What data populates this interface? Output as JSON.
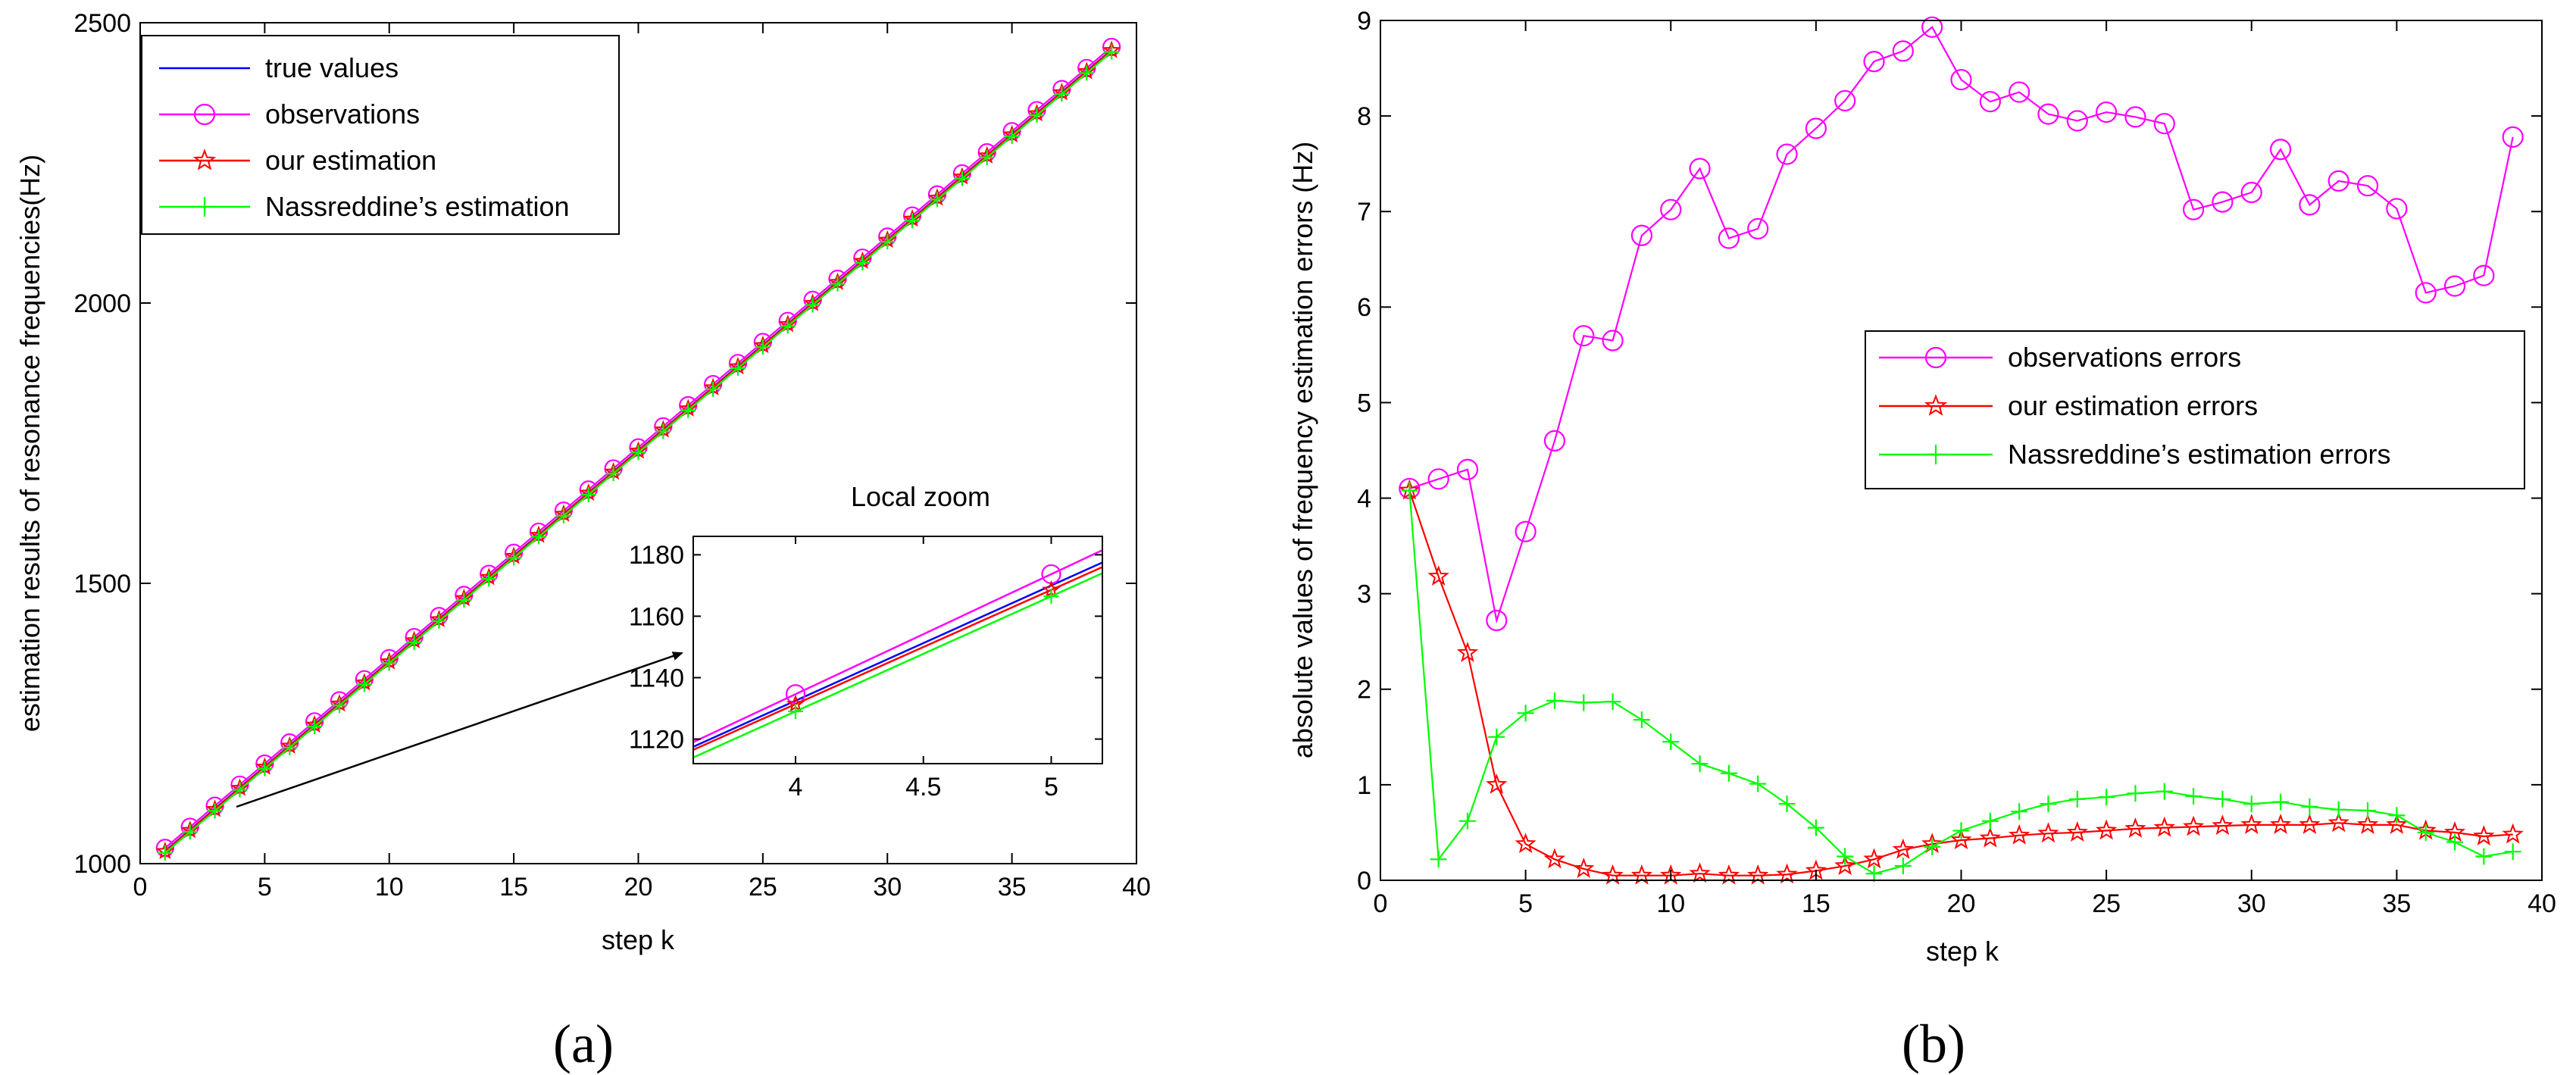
{
  "chart_data": [
    {
      "type": "line",
      "panel_label": "(a)",
      "xlabel": "step k",
      "ylabel": "estimation results of resonance frequencies(Hz)",
      "xlim": [
        0,
        40
      ],
      "ylim": [
        1000,
        2500
      ],
      "xticks": [
        "0",
        "5",
        "10",
        "15",
        "20",
        "25",
        "30",
        "35",
        "40"
      ],
      "yticks": [
        "1000",
        "1500",
        "2000",
        "2500"
      ],
      "legend_position": "top-left",
      "x": [
        1,
        2,
        3,
        4,
        5,
        6,
        7,
        8,
        9,
        10,
        11,
        12,
        13,
        14,
        15,
        16,
        17,
        18,
        19,
        20,
        21,
        22,
        23,
        24,
        25,
        26,
        27,
        28,
        29,
        30,
        31,
        32,
        33,
        34,
        35,
        36,
        37,
        38,
        39
      ],
      "line_start": 1023,
      "line_slope": 37.6,
      "series": [
        {
          "name": "true values",
          "color": "#0000ff",
          "marker": "none",
          "offset": 0
        },
        {
          "name": "observations",
          "color": "#ff00ff",
          "marker": "circle",
          "offset": 5
        },
        {
          "name": "our estimation",
          "color": "#ff0000",
          "marker": "star",
          "offset": -1
        },
        {
          "name": "Nassreddine’s estimation",
          "color": "#00ff00",
          "marker": "plus",
          "offset": -4
        }
      ],
      "inset": {
        "title": "Local zoom",
        "xlim": [
          3.6,
          5.2
        ],
        "ylim": [
          1112,
          1186
        ],
        "xticks": [
          "4",
          "4.5",
          "5"
        ],
        "yticks": [
          "1120",
          "1140",
          "1160",
          "1180"
        ],
        "series": [
          {
            "name": "true values",
            "color": "#0000ff",
            "marker": "none",
            "x": [
              3.6,
              5.2
            ],
            "y": [
              1117.5,
              1177.5
            ],
            "marker_x": []
          },
          {
            "name": "observations",
            "color": "#ff00ff",
            "marker": "circle",
            "x": [
              3.6,
              5.2
            ],
            "y": [
              1119.0,
              1181.5
            ],
            "marker_x": [
              4,
              5
            ]
          },
          {
            "name": "our estimation",
            "color": "#ff0000",
            "marker": "star",
            "x": [
              3.6,
              5.2
            ],
            "y": [
              1116.5,
              1176.0
            ],
            "marker_x": [
              4,
              5
            ]
          },
          {
            "name": "Nassreddine’s estimation",
            "color": "#00ff00",
            "marker": "plus",
            "x": [
              3.6,
              5.2
            ],
            "y": [
              1114.0,
              1174.0
            ],
            "marker_x": [
              4,
              5
            ]
          }
        ]
      }
    },
    {
      "type": "line",
      "panel_label": "(b)",
      "xlabel": "step k",
      "ylabel": "absolute values of frequency estimation errors (Hz)",
      "xlim": [
        0,
        40
      ],
      "ylim": [
        0,
        9
      ],
      "xticks": [
        "0",
        "5",
        "10",
        "15",
        "20",
        "25",
        "30",
        "35",
        "40"
      ],
      "yticks": [
        "0",
        "1",
        "2",
        "3",
        "4",
        "5",
        "6",
        "7",
        "8",
        "9"
      ],
      "legend_position": "center-right",
      "x": [
        1,
        2,
        3,
        4,
        5,
        6,
        7,
        8,
        9,
        10,
        11,
        12,
        13,
        14,
        15,
        16,
        17,
        18,
        19,
        20,
        21,
        22,
        23,
        24,
        25,
        26,
        27,
        28,
        29,
        30,
        31,
        32,
        33,
        34,
        35,
        36,
        37,
        38,
        39
      ],
      "series": [
        {
          "name": "observations errors",
          "color": "#ff00ff",
          "marker": "circle",
          "values": [
            4.1,
            4.2,
            4.3,
            2.72,
            3.65,
            4.6,
            5.7,
            5.65,
            6.75,
            7.02,
            7.45,
            6.72,
            6.82,
            7.6,
            7.87,
            8.16,
            8.57,
            8.68,
            8.93,
            8.38,
            8.15,
            8.25,
            8.02,
            7.95,
            8.04,
            7.99,
            7.92,
            7.02,
            7.1,
            7.2,
            7.65,
            7.07,
            7.32,
            7.27,
            7.03,
            6.15,
            6.22,
            6.33,
            7.78
          ]
        },
        {
          "name": "our estimation errors",
          "color": "#ff0000",
          "marker": "star",
          "values": [
            4.08,
            3.18,
            2.38,
            1.0,
            0.38,
            0.22,
            0.12,
            0.05,
            0.05,
            0.05,
            0.07,
            0.05,
            0.05,
            0.06,
            0.1,
            0.15,
            0.22,
            0.32,
            0.38,
            0.42,
            0.44,
            0.47,
            0.49,
            0.5,
            0.52,
            0.54,
            0.55,
            0.56,
            0.57,
            0.58,
            0.58,
            0.58,
            0.6,
            0.58,
            0.58,
            0.52,
            0.5,
            0.46,
            0.48
          ]
        },
        {
          "name": "Nassreddine’s estimation errors",
          "color": "#00ff00",
          "marker": "plus",
          "values": [
            4.08,
            0.22,
            0.62,
            1.5,
            1.75,
            1.88,
            1.86,
            1.87,
            1.68,
            1.45,
            1.22,
            1.12,
            1.01,
            0.8,
            0.55,
            0.25,
            0.07,
            0.15,
            0.35,
            0.52,
            0.62,
            0.72,
            0.8,
            0.85,
            0.87,
            0.91,
            0.93,
            0.88,
            0.85,
            0.8,
            0.82,
            0.77,
            0.74,
            0.73,
            0.68,
            0.5,
            0.4,
            0.25,
            0.3
          ]
        }
      ]
    }
  ]
}
